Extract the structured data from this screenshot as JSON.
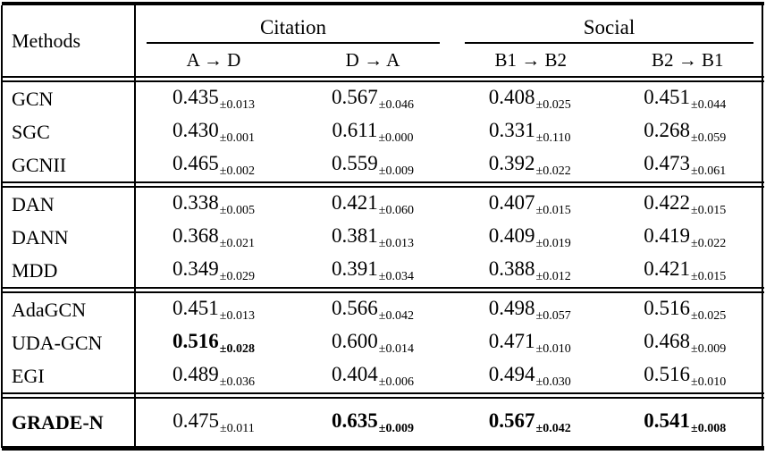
{
  "table": {
    "methods_header": "Methods",
    "groups": [
      {
        "title": "Citation",
        "cols": [
          "A → D",
          "D → A"
        ]
      },
      {
        "title": "Social",
        "cols": [
          "B1 → B2",
          "B2 → B1"
        ]
      }
    ],
    "rows": [
      {
        "method": "GCN",
        "bold_method": false,
        "cells": [
          {
            "mean": "0.435",
            "std": "±0.013",
            "bold": false
          },
          {
            "mean": "0.567",
            "std": "±0.046",
            "bold": false
          },
          {
            "mean": "0.408",
            "std": "±0.025",
            "bold": false
          },
          {
            "mean": "0.451",
            "std": "±0.044",
            "bold": false
          }
        ]
      },
      {
        "method": "SGC",
        "bold_method": false,
        "cells": [
          {
            "mean": "0.430",
            "std": "±0.001",
            "bold": false
          },
          {
            "mean": "0.611",
            "std": "±0.000",
            "bold": false
          },
          {
            "mean": "0.331",
            "std": "±0.110",
            "bold": false
          },
          {
            "mean": "0.268",
            "std": "±0.059",
            "bold": false
          }
        ]
      },
      {
        "method": "GCNII",
        "bold_method": false,
        "cells": [
          {
            "mean": "0.465",
            "std": "±0.002",
            "bold": false
          },
          {
            "mean": "0.559",
            "std": "±0.009",
            "bold": false
          },
          {
            "mean": "0.392",
            "std": "±0.022",
            "bold": false
          },
          {
            "mean": "0.473",
            "std": "±0.061",
            "bold": false
          }
        ]
      },
      {
        "method": "DAN",
        "bold_method": false,
        "cells": [
          {
            "mean": "0.338",
            "std": "±0.005",
            "bold": false
          },
          {
            "mean": "0.421",
            "std": "±0.060",
            "bold": false
          },
          {
            "mean": "0.407",
            "std": "±0.015",
            "bold": false
          },
          {
            "mean": "0.422",
            "std": "±0.015",
            "bold": false
          }
        ]
      },
      {
        "method": "DANN",
        "bold_method": false,
        "cells": [
          {
            "mean": "0.368",
            "std": "±0.021",
            "bold": false
          },
          {
            "mean": "0.381",
            "std": "±0.013",
            "bold": false
          },
          {
            "mean": "0.409",
            "std": "±0.019",
            "bold": false
          },
          {
            "mean": "0.419",
            "std": "±0.022",
            "bold": false
          }
        ]
      },
      {
        "method": "MDD",
        "bold_method": false,
        "cells": [
          {
            "mean": "0.349",
            "std": "±0.029",
            "bold": false
          },
          {
            "mean": "0.391",
            "std": "±0.034",
            "bold": false
          },
          {
            "mean": "0.388",
            "std": "±0.012",
            "bold": false
          },
          {
            "mean": "0.421",
            "std": "±0.015",
            "bold": false
          }
        ]
      },
      {
        "method": "AdaGCN",
        "bold_method": false,
        "cells": [
          {
            "mean": "0.451",
            "std": "±0.013",
            "bold": false
          },
          {
            "mean": "0.566",
            "std": "±0.042",
            "bold": false
          },
          {
            "mean": "0.498",
            "std": "±0.057",
            "bold": false
          },
          {
            "mean": "0.516",
            "std": "±0.025",
            "bold": false
          }
        ]
      },
      {
        "method": "UDA-GCN",
        "bold_method": false,
        "cells": [
          {
            "mean": "0.516",
            "std": "±0.028",
            "bold": true
          },
          {
            "mean": "0.600",
            "std": "±0.014",
            "bold": false
          },
          {
            "mean": "0.471",
            "std": "±0.010",
            "bold": false
          },
          {
            "mean": "0.468",
            "std": "±0.009",
            "bold": false
          }
        ]
      },
      {
        "method": "EGI",
        "bold_method": false,
        "cells": [
          {
            "mean": "0.489",
            "std": "±0.036",
            "bold": false
          },
          {
            "mean": "0.404",
            "std": "±0.006",
            "bold": false
          },
          {
            "mean": "0.494",
            "std": "±0.030",
            "bold": false
          },
          {
            "mean": "0.516",
            "std": "±0.010",
            "bold": false
          }
        ]
      },
      {
        "method": "GRADE-N",
        "bold_method": true,
        "cells": [
          {
            "mean": "0.475",
            "std": "±0.011",
            "bold": false
          },
          {
            "mean": "0.635",
            "std": "±0.009",
            "bold": true
          },
          {
            "mean": "0.567",
            "std": "±0.042",
            "bold": true
          },
          {
            "mean": "0.541",
            "std": "±0.008",
            "bold": true
          }
        ]
      }
    ]
  }
}
